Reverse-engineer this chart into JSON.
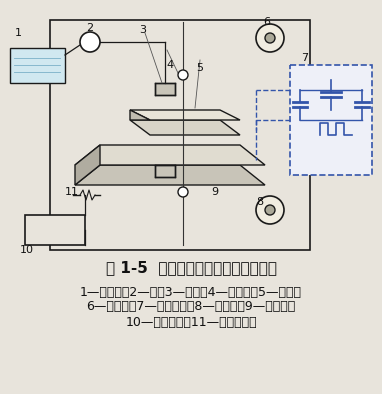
{
  "title": "图 1-5  中走丝电火花线切割加工原理",
  "caption_line1": "1—工作液；2—泵；3—喷嘴；4—导向器；5—工件；",
  "caption_line2": "6—运丝筒；7—脉冲电源；8—电极丝；9—工作台；",
  "caption_line3": "10—数控装置；11—步进电动机",
  "bg_color": "#e8e4dc",
  "line_color": "#1a1a1a",
  "dashed_box_color": "#3355aa",
  "title_fontsize": 11,
  "caption_fontsize": 9
}
